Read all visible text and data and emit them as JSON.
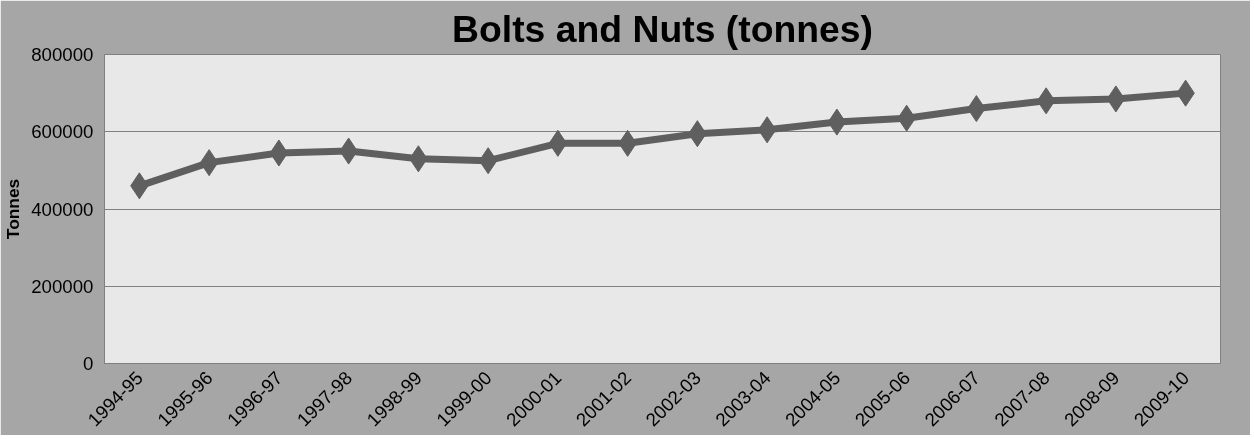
{
  "chart_data": {
    "type": "line",
    "title": "Bolts and Nuts (tonnes)",
    "ylabel": "Tonnes",
    "categories": [
      "1994-95",
      "1995-96",
      "1996-97",
      "1997-98",
      "1998-99",
      "1999-00",
      "2000-01",
      "2001-02",
      "2002-03",
      "2003-04",
      "2004-05",
      "2005-06",
      "2006-07",
      "2007-08",
      "2008-09",
      "2009-10"
    ],
    "series": [
      {
        "color": "#5f5f5f",
        "values": [
          460000,
          520000,
          545000,
          550000,
          530000,
          525000,
          570000,
          570000,
          595000,
          605000,
          625000,
          635000,
          660000,
          680000,
          685000,
          700000
        ]
      }
    ],
    "ylim": [
      0,
      800000
    ],
    "yticks": [
      0,
      200000,
      400000,
      600000,
      800000
    ],
    "grid": "y",
    "marker": "diamond",
    "line_style": "solid"
  }
}
